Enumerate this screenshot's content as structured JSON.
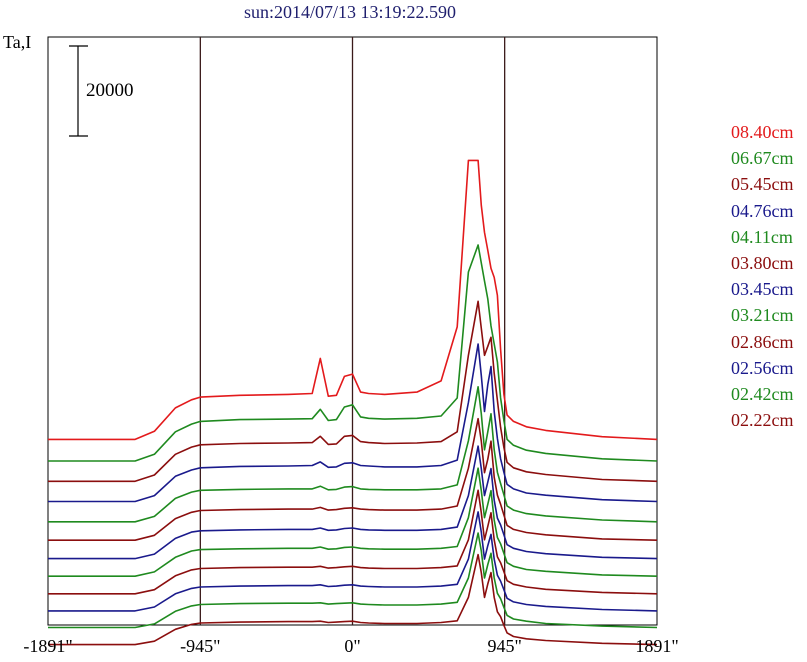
{
  "title": "sun:2014/07/13 13:19:22.590",
  "ylabel": "Ta,I",
  "scale_bar_label": "20000",
  "chart_data": {
    "type": "line",
    "title": "sun:2014/07/13 13:19:22.590",
    "ylabel": "Ta,I",
    "xlabel": "",
    "x_range_arcsec": [
      -1891,
      1891
    ],
    "x_ticks": [
      {
        "value": -1891,
        "label": "-1891\""
      },
      {
        "value": -945,
        "label": "-945\""
      },
      {
        "value": 0,
        "label": "0\""
      },
      {
        "value": 945,
        "label": "945\""
      },
      {
        "value": 1891,
        "label": "1891\""
      }
    ],
    "vertical_lines": [
      -945,
      0,
      945
    ],
    "scale_bar": 20000,
    "grid": false,
    "legend_placement": "right",
    "profile_x": [
      -1891,
      -1350,
      -1230,
      -1100,
      -1000,
      -945,
      -700,
      -400,
      -250,
      -200,
      -150,
      -100,
      -50,
      0,
      50,
      100,
      200,
      400,
      550,
      650,
      720,
      780,
      800,
      820,
      840,
      860,
      880,
      900,
      920,
      940,
      960,
      1000,
      1080,
      1200,
      1550,
      1891
    ],
    "series": [
      {
        "name": "08.40cm",
        "color": "#e31a1c",
        "offset": 40800,
        "values": [
          0,
          0,
          1800,
          7000,
          8800,
          9400,
          9800,
          10000,
          10200,
          18000,
          9600,
          9800,
          14000,
          14500,
          10500,
          10200,
          10000,
          10500,
          13000,
          25000,
          62000,
          62000,
          52000,
          46000,
          42000,
          38000,
          36000,
          32000,
          20000,
          10000,
          5400,
          4000,
          2800,
          2000,
          600,
          0
        ]
      },
      {
        "name": "06.67cm",
        "color": "#1f8a1f",
        "offset": 36000,
        "values": [
          0,
          0,
          1500,
          6500,
          8200,
          8800,
          9200,
          9300,
          9400,
          11500,
          9000,
          9200,
          12000,
          12500,
          9800,
          9500,
          9300,
          9500,
          10000,
          14000,
          42000,
          48000,
          44000,
          40000,
          36000,
          30000,
          26000,
          22000,
          14000,
          9000,
          4800,
          3500,
          2400,
          1700,
          500,
          0
        ]
      },
      {
        "name": "05.45cm",
        "color": "#8b0e0e",
        "offset": 31500,
        "values": [
          0,
          0,
          1400,
          6000,
          7600,
          8100,
          8400,
          8500,
          8600,
          10000,
          8200,
          8300,
          10000,
          10200,
          8800,
          8600,
          8400,
          8500,
          8800,
          11000,
          28000,
          40000,
          34000,
          28000,
          30000,
          32000,
          24000,
          18000,
          12000,
          7500,
          4200,
          3000,
          2100,
          1500,
          400,
          0
        ]
      },
      {
        "name": "04.76cm",
        "color": "#1a1a8c",
        "offset": 27000,
        "values": [
          0,
          0,
          1300,
          5600,
          7000,
          7500,
          7800,
          7900,
          8000,
          8800,
          7600,
          7700,
          8500,
          8600,
          8000,
          7900,
          7700,
          7700,
          8000,
          9200,
          22000,
          35000,
          28000,
          20000,
          26000,
          30000,
          20000,
          14000,
          9500,
          6500,
          3800,
          2800,
          1900,
          1400,
          400,
          0
        ]
      },
      {
        "name": "04.11cm",
        "color": "#1f8a1f",
        "offset": 22500,
        "values": [
          0,
          0,
          1200,
          5200,
          6600,
          7000,
          7200,
          7300,
          7300,
          7900,
          7100,
          7200,
          7700,
          7800,
          7300,
          7200,
          7100,
          7100,
          7300,
          8200,
          18000,
          30000,
          24000,
          16000,
          20000,
          24000,
          16000,
          11000,
          8500,
          6000,
          3500,
          2600,
          1800,
          1300,
          400,
          0
        ]
      },
      {
        "name": "03.80cm",
        "color": "#8b0e0e",
        "offset": 18400,
        "values": [
          0,
          0,
          1100,
          4800,
          6200,
          6600,
          6800,
          6900,
          6900,
          7300,
          6700,
          6800,
          7100,
          7200,
          6900,
          6800,
          6700,
          6700,
          6900,
          7600,
          16000,
          27000,
          22000,
          15000,
          18000,
          22000,
          14000,
          10000,
          8000,
          5600,
          3300,
          2400,
          1700,
          1200,
          300,
          0
        ]
      },
      {
        "name": "03.45cm",
        "color": "#1a1a8c",
        "offset": 14300,
        "values": [
          0,
          0,
          1000,
          4500,
          5900,
          6200,
          6400,
          6500,
          6500,
          6800,
          6300,
          6400,
          6700,
          6800,
          6500,
          6400,
          6300,
          6300,
          6500,
          7000,
          14000,
          25000,
          20000,
          14000,
          17000,
          20000,
          13000,
          9000,
          7500,
          5300,
          3100,
          2300,
          1600,
          1100,
          300,
          0
        ]
      },
      {
        "name": "03.21cm",
        "color": "#1f8a1f",
        "offset": 10400,
        "values": [
          0,
          0,
          950,
          4200,
          5600,
          5900,
          6100,
          6200,
          6200,
          6500,
          6000,
          6100,
          6400,
          6500,
          6200,
          6100,
          6000,
          6000,
          6200,
          6600,
          13000,
          24000,
          19000,
          13000,
          16000,
          19000,
          12500,
          8600,
          7200,
          5100,
          3000,
          2200,
          1500,
          1100,
          300,
          0
        ]
      },
      {
        "name": "02.86cm",
        "color": "#8b0e0e",
        "offset": 6500,
        "values": [
          0,
          0,
          900,
          4000,
          5300,
          5600,
          5800,
          5900,
          5900,
          6100,
          5700,
          5800,
          6000,
          6100,
          5800,
          5700,
          5600,
          5600,
          5800,
          6200,
          12000,
          23000,
          18000,
          12000,
          15000,
          18000,
          12000,
          8200,
          6900,
          4900,
          2900,
          2100,
          1500,
          1000,
          300,
          0
        ]
      },
      {
        "name": "02.56cm",
        "color": "#1a1a8c",
        "offset": 2700,
        "values": [
          0,
          0,
          850,
          3800,
          5000,
          5300,
          5500,
          5600,
          5600,
          5800,
          5400,
          5500,
          5700,
          5800,
          5500,
          5400,
          5300,
          5300,
          5500,
          5900,
          11500,
          22000,
          17500,
          11500,
          14500,
          17000,
          11500,
          7900,
          6600,
          4700,
          2800,
          2000,
          1400,
          1000,
          300,
          0
        ]
      },
      {
        "name": "02.42cm",
        "color": "#1f8a1f",
        "offset": -1000,
        "values": [
          0,
          0,
          800,
          3600,
          4800,
          5100,
          5300,
          5400,
          5400,
          5500,
          5200,
          5300,
          5400,
          5500,
          5200,
          5100,
          5000,
          5000,
          5200,
          5600,
          11000,
          21000,
          17000,
          11000,
          14000,
          16500,
          11000,
          7600,
          6400,
          4500,
          2700,
          1900,
          1400,
          900,
          300,
          0
        ]
      },
      {
        "name": "02.22cm",
        "color": "#8b0e0e",
        "offset": -4800,
        "values": [
          0,
          0,
          750,
          3400,
          4500,
          4800,
          5000,
          5100,
          5100,
          5200,
          4900,
          5000,
          5100,
          5200,
          4900,
          4800,
          4700,
          4700,
          4900,
          5300,
          10500,
          20000,
          16000,
          10500,
          13500,
          16000,
          10500,
          7300,
          6200,
          4300,
          2600,
          1800,
          1300,
          900,
          300,
          0
        ]
      }
    ]
  }
}
